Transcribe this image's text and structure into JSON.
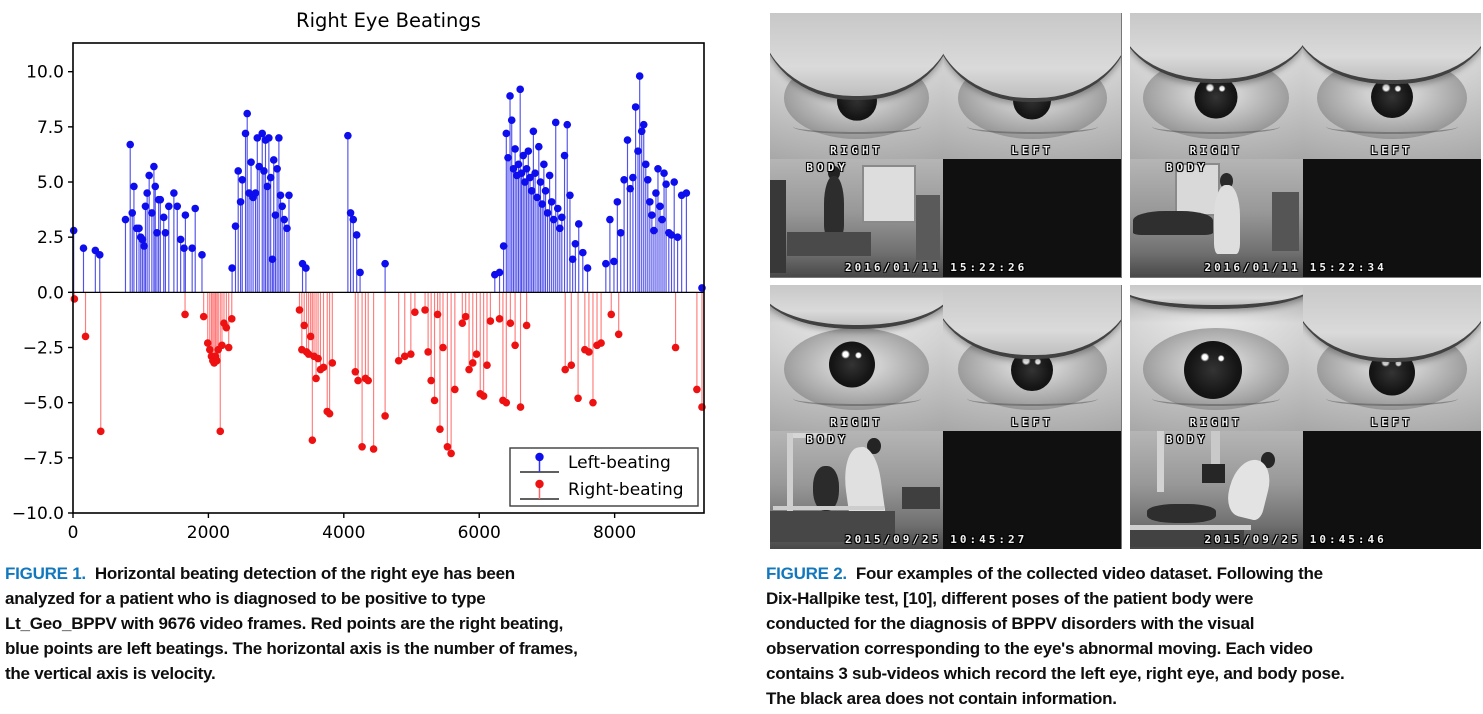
{
  "figure1": {
    "caption": {
      "label": "FIGURE 1.",
      "lines": [
        "Horizontal beating detection of the right eye has been",
        "analyzed for a patient who is diagnosed to be positive to type",
        "Lt_Geo_BPPV with 9676 video frames. Red points are the right beating,",
        "blue points are left beatings. The horizontal axis is the number of frames,",
        "the vertical axis is velocity."
      ]
    },
    "chart_data": {
      "type": "scatter",
      "style": "stem",
      "title": "Right Eye Beatings",
      "xlabel": "",
      "ylabel": "",
      "xlim": [
        0,
        9320
      ],
      "ylim": [
        -10,
        11.3
      ],
      "xticks": [
        0,
        2000,
        4000,
        6000,
        8000
      ],
      "yticks": [
        -10.0,
        -7.5,
        -5.0,
        -2.5,
        0.0,
        2.5,
        5.0,
        7.5,
        10.0
      ],
      "grid": false,
      "legend_position": "lower right",
      "series": [
        {
          "name": "Left-beating",
          "color": "#0d0dee",
          "stem_color": "#3434e8",
          "points": [
            [
              10,
              2.8
            ],
            [
              155,
              2.0
            ],
            [
              330,
              1.9
            ],
            [
              395,
              1.7
            ],
            [
              775,
              3.3
            ],
            [
              845,
              6.7
            ],
            [
              875,
              3.6
            ],
            [
              900,
              4.8
            ],
            [
              940,
              2.9
            ],
            [
              975,
              2.9
            ],
            [
              1000,
              2.5
            ],
            [
              1025,
              2.4
            ],
            [
              1050,
              2.1
            ],
            [
              1070,
              3.9
            ],
            [
              1095,
              4.5
            ],
            [
              1125,
              5.3
            ],
            [
              1165,
              3.6
            ],
            [
              1195,
              5.7
            ],
            [
              1215,
              4.8
            ],
            [
              1240,
              2.7
            ],
            [
              1265,
              4.2
            ],
            [
              1290,
              4.2
            ],
            [
              1340,
              3.4
            ],
            [
              1365,
              2.7
            ],
            [
              1415,
              3.9
            ],
            [
              1490,
              4.5
            ],
            [
              1540,
              3.9
            ],
            [
              1590,
              2.4
            ],
            [
              1640,
              2.0
            ],
            [
              1660,
              3.5
            ],
            [
              1760,
              2.0
            ],
            [
              1805,
              3.8
            ],
            [
              1905,
              1.7
            ],
            [
              2350,
              1.1
            ],
            [
              2400,
              3.0
            ],
            [
              2440,
              5.5
            ],
            [
              2475,
              4.1
            ],
            [
              2500,
              5.1
            ],
            [
              2548,
              7.2
            ],
            [
              2573,
              8.1
            ],
            [
              2600,
              4.5
            ],
            [
              2630,
              5.9
            ],
            [
              2660,
              4.3
            ],
            [
              2695,
              4.5
            ],
            [
              2722,
              7.0
            ],
            [
              2750,
              5.7
            ],
            [
              2795,
              7.2
            ],
            [
              2820,
              5.5
            ],
            [
              2843,
              6.9
            ],
            [
              2870,
              4.8
            ],
            [
              2893,
              7.0
            ],
            [
              2920,
              5.2
            ],
            [
              2945,
              1.5
            ],
            [
              2965,
              6.0
            ],
            [
              2990,
              3.5
            ],
            [
              3015,
              5.6
            ],
            [
              3041,
              7.0
            ],
            [
              3065,
              4.4
            ],
            [
              3090,
              3.9
            ],
            [
              3120,
              3.3
            ],
            [
              3160,
              2.9
            ],
            [
              3190,
              4.4
            ],
            [
              3390,
              1.3
            ],
            [
              3440,
              1.1
            ],
            [
              4610,
              1.3
            ],
            [
              4060,
              7.1
            ],
            [
              4100,
              3.6
            ],
            [
              4140,
              3.3
            ],
            [
              4190,
              2.6
            ],
            [
              4240,
              0.9
            ],
            [
              6230,
              0.8
            ],
            [
              6300,
              0.9
            ],
            [
              6360,
              2.1
            ],
            [
              6400,
              7.2
            ],
            [
              6425,
              6.1
            ],
            [
              6455,
              8.9
            ],
            [
              6480,
              7.8
            ],
            [
              6505,
              5.6
            ],
            [
              6530,
              6.5
            ],
            [
              6555,
              5.3
            ],
            [
              6580,
              5.8
            ],
            [
              6605,
              9.2
            ],
            [
              6625,
              5.4
            ],
            [
              6650,
              6.2
            ],
            [
              6675,
              5.0
            ],
            [
              6700,
              5.6
            ],
            [
              6725,
              6.4
            ],
            [
              6750,
              5.2
            ],
            [
              6775,
              4.6
            ],
            [
              6800,
              7.3
            ],
            [
              6825,
              5.4
            ],
            [
              6855,
              4.3
            ],
            [
              6880,
              6.6
            ],
            [
              6905,
              5.0
            ],
            [
              6930,
              4.0
            ],
            [
              6955,
              5.8
            ],
            [
              6980,
              4.6
            ],
            [
              7010,
              3.6
            ],
            [
              7040,
              5.3
            ],
            [
              7070,
              4.1
            ],
            [
              7100,
              3.3
            ],
            [
              7130,
              7.7
            ],
            [
              7160,
              3.8
            ],
            [
              7190,
              2.9
            ],
            [
              7220,
              3.4
            ],
            [
              7260,
              6.2
            ],
            [
              7300,
              7.6
            ],
            [
              7340,
              4.4
            ],
            [
              7380,
              1.5
            ],
            [
              7420,
              2.2
            ],
            [
              7470,
              3.1
            ],
            [
              7530,
              1.8
            ],
            [
              7600,
              1.1
            ],
            [
              7870,
              1.3
            ],
            [
              7930,
              3.3
            ],
            [
              7990,
              1.4
            ],
            [
              8040,
              4.1
            ],
            [
              8090,
              2.7
            ],
            [
              8140,
              5.1
            ],
            [
              8190,
              6.9
            ],
            [
              8230,
              4.7
            ],
            [
              8270,
              5.2
            ],
            [
              8310,
              8.4
            ],
            [
              8345,
              6.4
            ],
            [
              8370,
              9.8
            ],
            [
              8400,
              7.3
            ],
            [
              8430,
              7.6
            ],
            [
              8460,
              5.8
            ],
            [
              8490,
              5.1
            ],
            [
              8520,
              4.1
            ],
            [
              8550,
              3.5
            ],
            [
              8580,
              2.8
            ],
            [
              8610,
              4.5
            ],
            [
              8640,
              5.6
            ],
            [
              8670,
              3.9
            ],
            [
              8700,
              3.3
            ],
            [
              8730,
              5.4
            ],
            [
              8760,
              4.9
            ],
            [
              8800,
              2.7
            ],
            [
              8840,
              2.6
            ],
            [
              8880,
              5.0
            ],
            [
              8930,
              2.5
            ],
            [
              8990,
              4.4
            ],
            [
              9060,
              4.5
            ],
            [
              9290,
              0.2
            ]
          ]
        },
        {
          "name": "Right-beating",
          "color": "#ee1111",
          "stem_color": "#ff6666",
          "points": [
            [
              20,
              -0.3
            ],
            [
              185,
              -2.0
            ],
            [
              410,
              -6.3
            ],
            [
              1655,
              -1.0
            ],
            [
              1930,
              -1.1
            ],
            [
              1990,
              -2.3
            ],
            [
              2020,
              -2.6
            ],
            [
              2045,
              -2.9
            ],
            [
              2065,
              -3.1
            ],
            [
              2085,
              -3.2
            ],
            [
              2105,
              -2.9
            ],
            [
              2125,
              -3.1
            ],
            [
              2145,
              -2.6
            ],
            [
              2175,
              -6.3
            ],
            [
              2200,
              -2.4
            ],
            [
              2230,
              -1.4
            ],
            [
              2265,
              -1.6
            ],
            [
              2300,
              -2.5
            ],
            [
              2345,
              -1.2
            ],
            [
              3345,
              -0.8
            ],
            [
              3380,
              -2.6
            ],
            [
              3415,
              -1.5
            ],
            [
              3450,
              -2.7
            ],
            [
              3480,
              -2.8
            ],
            [
              3510,
              -2.0
            ],
            [
              3535,
              -6.7
            ],
            [
              3560,
              -2.9
            ],
            [
              3590,
              -3.9
            ],
            [
              3620,
              -3.0
            ],
            [
              3655,
              -3.5
            ],
            [
              3700,
              -3.4
            ],
            [
              3755,
              -5.4
            ],
            [
              3790,
              -5.5
            ],
            [
              3830,
              -3.2
            ],
            [
              4170,
              -3.6
            ],
            [
              4210,
              -4.0
            ],
            [
              4270,
              -7.0
            ],
            [
              4320,
              -3.9
            ],
            [
              4360,
              -4.0
            ],
            [
              4440,
              -7.1
            ],
            [
              4610,
              -5.6
            ],
            [
              4810,
              -3.1
            ],
            [
              4900,
              -2.9
            ],
            [
              4990,
              -2.8
            ],
            [
              5050,
              -0.9
            ],
            [
              5200,
              -0.8
            ],
            [
              5245,
              -2.7
            ],
            [
              5290,
              -4.0
            ],
            [
              5340,
              -4.9
            ],
            [
              5385,
              -1.0
            ],
            [
              5420,
              -6.2
            ],
            [
              5465,
              -2.5
            ],
            [
              5530,
              -7.0
            ],
            [
              5585,
              -7.3
            ],
            [
              5640,
              -4.4
            ],
            [
              5750,
              -1.4
            ],
            [
              5800,
              -1.1
            ],
            [
              5850,
              -3.5
            ],
            [
              5905,
              -3.2
            ],
            [
              5960,
              -2.8
            ],
            [
              6015,
              -4.6
            ],
            [
              6065,
              -4.7
            ],
            [
              6115,
              -3.3
            ],
            [
              6165,
              -1.3
            ],
            [
              6300,
              -1.2
            ],
            [
              6350,
              -4.9
            ],
            [
              6400,
              -5.0
            ],
            [
              6460,
              -1.4
            ],
            [
              6530,
              -2.4
            ],
            [
              6610,
              -5.2
            ],
            [
              6700,
              -1.5
            ],
            [
              7270,
              -3.5
            ],
            [
              7360,
              -3.3
            ],
            [
              7460,
              -4.8
            ],
            [
              7560,
              -2.6
            ],
            [
              7620,
              -2.7
            ],
            [
              7680,
              -5.0
            ],
            [
              7740,
              -2.4
            ],
            [
              7800,
              -2.3
            ],
            [
              7950,
              -1.0
            ],
            [
              8060,
              -1.9
            ],
            [
              8900,
              -2.5
            ],
            [
              9215,
              -4.4
            ],
            [
              9290,
              -5.2
            ]
          ]
        }
      ]
    }
  },
  "figure2": {
    "caption": {
      "label": "FIGURE 2.",
      "lines": [
        "Four examples of the collected video dataset. Following the",
        "Dix-Hallpike test, [10], different poses of the patient body were",
        "conducted for the diagnosis of BPPV disorders with the visual",
        "observation corresponding to the eye's abnormal moving. Each video",
        "contains 3 sub-videos which record the left eye, right eye, and body pose.",
        "The black area does not contain information."
      ]
    },
    "frames": [
      {
        "right_label": "RIGHT",
        "left_label": "LEFT",
        "body_label": "BODY",
        "date": "2016/01/11",
        "time": "15:22:26"
      },
      {
        "right_label": "RIGHT",
        "left_label": "LEFT",
        "body_label": "BODY",
        "date": "2016/01/11",
        "time": "15:22:34"
      },
      {
        "right_label": "RIGHT",
        "left_label": "LEFT",
        "body_label": "BODY",
        "date": "2015/09/25",
        "time": "10:45:27"
      },
      {
        "right_label": "RIGHT",
        "left_label": "LEFT",
        "body_label": "BODY",
        "date": "2015/09/25",
        "time": "10:45:46"
      }
    ]
  },
  "colors": {
    "figure_label_blue": "#1278bd",
    "left_beating_blue": "#0d0dee",
    "right_beating_red": "#ee1111",
    "caption_text": "#0e0e0e"
  }
}
